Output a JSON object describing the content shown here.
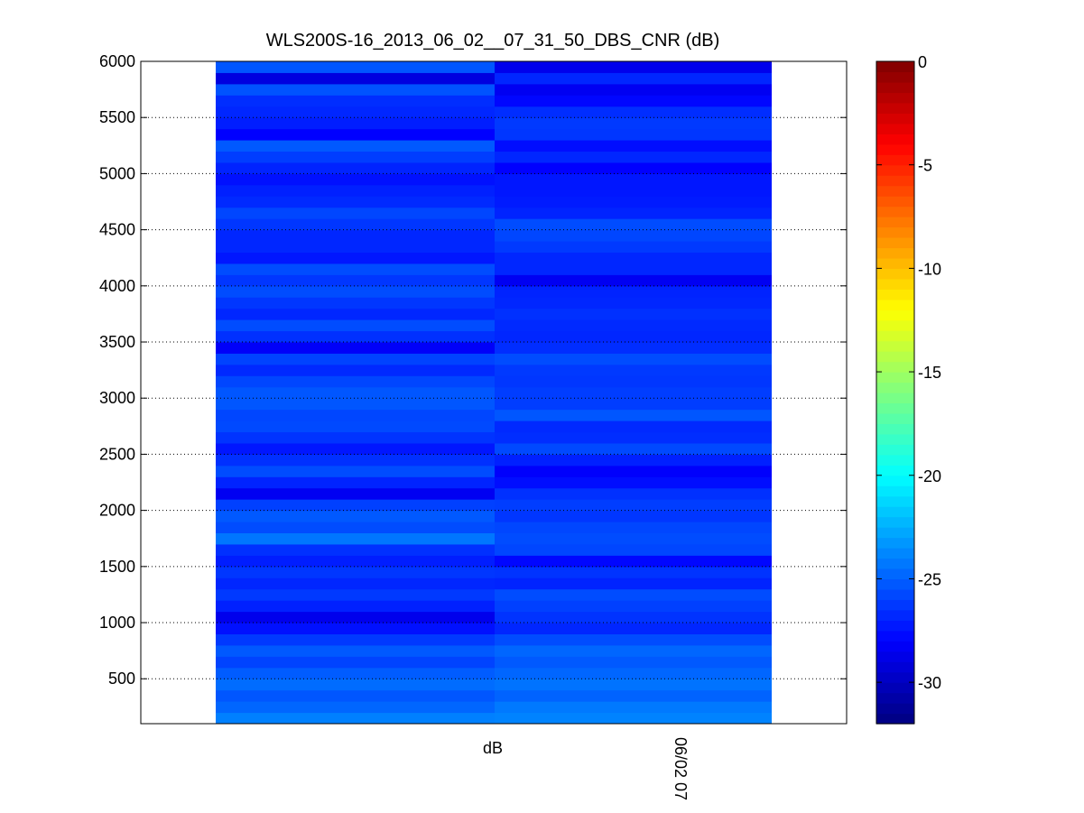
{
  "chart_data": {
    "type": "heatmap",
    "title": "WLS200S-16_2013_06_02__07_31_50_DBS_CNR (dB)",
    "xlabel": "dB",
    "x_tick_labels": [
      "06/02 07"
    ],
    "ylim": [
      100,
      6000
    ],
    "y_ticks": [
      500,
      1000,
      1500,
      2000,
      2500,
      3000,
      3500,
      4000,
      4500,
      5000,
      5500,
      6000
    ],
    "grid": true,
    "colorscale": "jet",
    "color_range": [
      -32,
      0
    ],
    "colorbar_ticks": [
      0,
      -5,
      -10,
      -15,
      -20,
      -25,
      -30
    ],
    "colorbar_placement": "right",
    "columns": [
      {
        "bands": [
          [
            100,
            200,
            -24.0
          ],
          [
            200,
            300,
            -24.8
          ],
          [
            300,
            400,
            -25.3
          ],
          [
            400,
            500,
            -24.6
          ],
          [
            500,
            600,
            -25.1
          ],
          [
            600,
            700,
            -25.9
          ],
          [
            700,
            800,
            -25.2
          ],
          [
            800,
            900,
            -26.2
          ],
          [
            900,
            1000,
            -27.5
          ],
          [
            1000,
            1100,
            -28.6
          ],
          [
            1100,
            1200,
            -27.0
          ],
          [
            1200,
            1300,
            -26.2
          ],
          [
            1300,
            1400,
            -26.8
          ],
          [
            1400,
            1500,
            -26.3
          ],
          [
            1500,
            1600,
            -27.1
          ],
          [
            1600,
            1700,
            -26.5
          ],
          [
            1700,
            1800,
            -24.3
          ],
          [
            1800,
            1900,
            -25.6
          ],
          [
            1900,
            2000,
            -25.2
          ],
          [
            2000,
            2100,
            -26.0
          ],
          [
            2100,
            2200,
            -28.4
          ],
          [
            2200,
            2300,
            -26.9
          ],
          [
            2300,
            2400,
            -25.6
          ],
          [
            2400,
            2500,
            -26.5
          ],
          [
            2500,
            2600,
            -27.3
          ],
          [
            2600,
            2700,
            -26.4
          ],
          [
            2700,
            2800,
            -25.7
          ],
          [
            2800,
            2900,
            -25.8
          ],
          [
            2900,
            3000,
            -25.3
          ],
          [
            3000,
            3100,
            -25.3
          ],
          [
            3100,
            3200,
            -25.8
          ],
          [
            3200,
            3300,
            -26.7
          ],
          [
            3300,
            3400,
            -25.9
          ],
          [
            3400,
            3500,
            -28.2
          ],
          [
            3500,
            3600,
            -26.5
          ],
          [
            3600,
            3700,
            -25.6
          ],
          [
            3700,
            3800,
            -26.8
          ],
          [
            3800,
            3900,
            -26.3
          ],
          [
            3900,
            4000,
            -25.6
          ],
          [
            4000,
            4100,
            -26.3
          ],
          [
            4100,
            4200,
            -25.6
          ],
          [
            4200,
            4300,
            -27.3
          ],
          [
            4300,
            4400,
            -26.8
          ],
          [
            4400,
            4500,
            -26.8
          ],
          [
            4500,
            4600,
            -26.3
          ],
          [
            4600,
            4700,
            -25.8
          ],
          [
            4700,
            4800,
            -26.7
          ],
          [
            4800,
            4900,
            -27.0
          ],
          [
            4900,
            5000,
            -27.5
          ],
          [
            5000,
            5100,
            -26.9
          ],
          [
            5100,
            5200,
            -26.1
          ],
          [
            5200,
            5300,
            -25.2
          ],
          [
            5300,
            5400,
            -28.0
          ],
          [
            5400,
            5500,
            -27.1
          ],
          [
            5500,
            5600,
            -26.8
          ],
          [
            5600,
            5700,
            -26.6
          ],
          [
            5700,
            5800,
            -25.4
          ],
          [
            5800,
            5900,
            -29.0
          ],
          [
            5900,
            6000,
            -25.3
          ]
        ]
      },
      {
        "bands": [
          [
            100,
            200,
            -23.9
          ],
          [
            200,
            300,
            -24.2
          ],
          [
            300,
            400,
            -24.9
          ],
          [
            400,
            500,
            -24.4
          ],
          [
            500,
            600,
            -24.8
          ],
          [
            600,
            700,
            -25.2
          ],
          [
            700,
            800,
            -24.8
          ],
          [
            800,
            900,
            -25.6
          ],
          [
            900,
            1000,
            -26.8
          ],
          [
            1000,
            1100,
            -26.4
          ],
          [
            1100,
            1200,
            -26.0
          ],
          [
            1200,
            1300,
            -25.6
          ],
          [
            1300,
            1400,
            -26.9
          ],
          [
            1400,
            1500,
            -26.4
          ],
          [
            1500,
            1600,
            -27.8
          ],
          [
            1600,
            1700,
            -25.8
          ],
          [
            1700,
            1800,
            -25.6
          ],
          [
            1800,
            1900,
            -25.8
          ],
          [
            1900,
            2000,
            -26.3
          ],
          [
            2000,
            2100,
            -26.1
          ],
          [
            2100,
            2200,
            -26.5
          ],
          [
            2200,
            2300,
            -27.6
          ],
          [
            2300,
            2400,
            -28.1
          ],
          [
            2400,
            2500,
            -27.0
          ],
          [
            2500,
            2600,
            -25.7
          ],
          [
            2600,
            2700,
            -26.6
          ],
          [
            2700,
            2800,
            -26.7
          ],
          [
            2800,
            2900,
            -25.3
          ],
          [
            2900,
            3000,
            -26.1
          ],
          [
            3000,
            3100,
            -26.1
          ],
          [
            3100,
            3200,
            -26.3
          ],
          [
            3200,
            3300,
            -26.2
          ],
          [
            3300,
            3400,
            -25.6
          ],
          [
            3400,
            3500,
            -26.6
          ],
          [
            3500,
            3600,
            -26.8
          ],
          [
            3600,
            3700,
            -26.7
          ],
          [
            3700,
            3800,
            -26.5
          ],
          [
            3800,
            3900,
            -26.8
          ],
          [
            3900,
            4000,
            -26.9
          ],
          [
            4000,
            4100,
            -28.4
          ],
          [
            4100,
            4200,
            -26.8
          ],
          [
            4200,
            4300,
            -26.8
          ],
          [
            4300,
            4400,
            -26.2
          ],
          [
            4400,
            4500,
            -25.8
          ],
          [
            4500,
            4600,
            -25.6
          ],
          [
            4600,
            4700,
            -26.9
          ],
          [
            4700,
            4800,
            -27.2
          ],
          [
            4800,
            4900,
            -27.3
          ],
          [
            4900,
            5000,
            -27.3
          ],
          [
            5000,
            5100,
            -28.0
          ],
          [
            5100,
            5200,
            -26.8
          ],
          [
            5200,
            5300,
            -27.6
          ],
          [
            5300,
            5400,
            -26.3
          ],
          [
            5400,
            5500,
            -26.2
          ],
          [
            5500,
            5600,
            -26.6
          ],
          [
            5600,
            5700,
            -27.8
          ],
          [
            5700,
            5800,
            -28.4
          ],
          [
            5800,
            5900,
            -26.8
          ],
          [
            5900,
            6000,
            -28.6
          ]
        ]
      }
    ]
  }
}
